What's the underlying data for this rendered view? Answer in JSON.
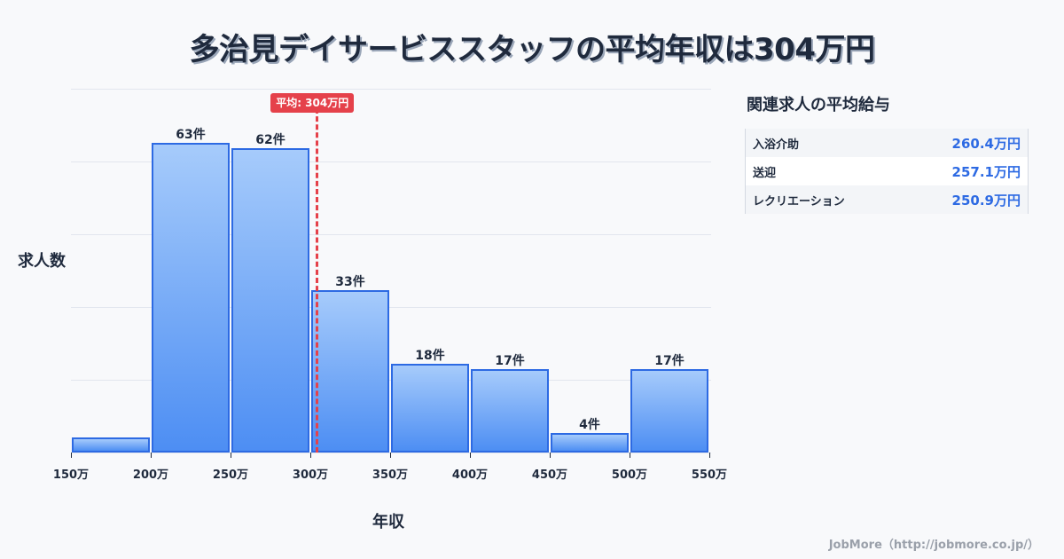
{
  "title": "多治見デイサービススタッフの平均年収は304万円",
  "chart_data": {
    "type": "bar",
    "title": "多治見デイサービススタッフの平均年収は304万円",
    "xlabel": "年収",
    "ylabel": "求人数",
    "bins": [
      {
        "range": "150万-200万",
        "start": 150,
        "end": 200,
        "value": 3,
        "label": ""
      },
      {
        "range": "200万-250万",
        "start": 200,
        "end": 250,
        "value": 63,
        "label": "63件"
      },
      {
        "range": "250万-300万",
        "start": 250,
        "end": 300,
        "value": 62,
        "label": "62件"
      },
      {
        "range": "300万-350万",
        "start": 300,
        "end": 350,
        "value": 33,
        "label": "33件"
      },
      {
        "range": "350万-400万",
        "start": 350,
        "end": 400,
        "value": 18,
        "label": "18件"
      },
      {
        "range": "400万-450万",
        "start": 400,
        "end": 450,
        "value": 17,
        "label": "17件"
      },
      {
        "range": "450万-500万",
        "start": 450,
        "end": 500,
        "value": 4,
        "label": "4件"
      },
      {
        "range": "500万-550万",
        "start": 500,
        "end": 550,
        "value": 17,
        "label": "17件"
      }
    ],
    "categories": [
      "150万-200万",
      "200万-250万",
      "250万-300万",
      "300万-350万",
      "350万-400万",
      "400万-450万",
      "450万-500万",
      "500万-550万"
    ],
    "values": [
      3,
      63,
      62,
      33,
      18,
      17,
      4,
      17
    ],
    "x_ticks": [
      "150万",
      "200万",
      "250万",
      "300万",
      "350万",
      "400万",
      "450万",
      "500万",
      "550万"
    ],
    "xlim": [
      150,
      550
    ],
    "ylim": [
      0,
      74
    ],
    "grid": true,
    "average": {
      "value": 304,
      "label": "平均: 304万円"
    },
    "bar_color": "#4d8ef3",
    "bar_border_color": "#2d6ae3",
    "average_line_color": "#e5414a"
  },
  "related": {
    "title": "関連求人の平均給与",
    "rows": [
      {
        "name": "入浴介助",
        "value": "260.4万円"
      },
      {
        "name": "送迎",
        "value": "257.1万円"
      },
      {
        "name": "レクリエーション",
        "value": "250.9万円"
      }
    ]
  },
  "footer": "JobMore（http://jobmore.co.jp/）"
}
